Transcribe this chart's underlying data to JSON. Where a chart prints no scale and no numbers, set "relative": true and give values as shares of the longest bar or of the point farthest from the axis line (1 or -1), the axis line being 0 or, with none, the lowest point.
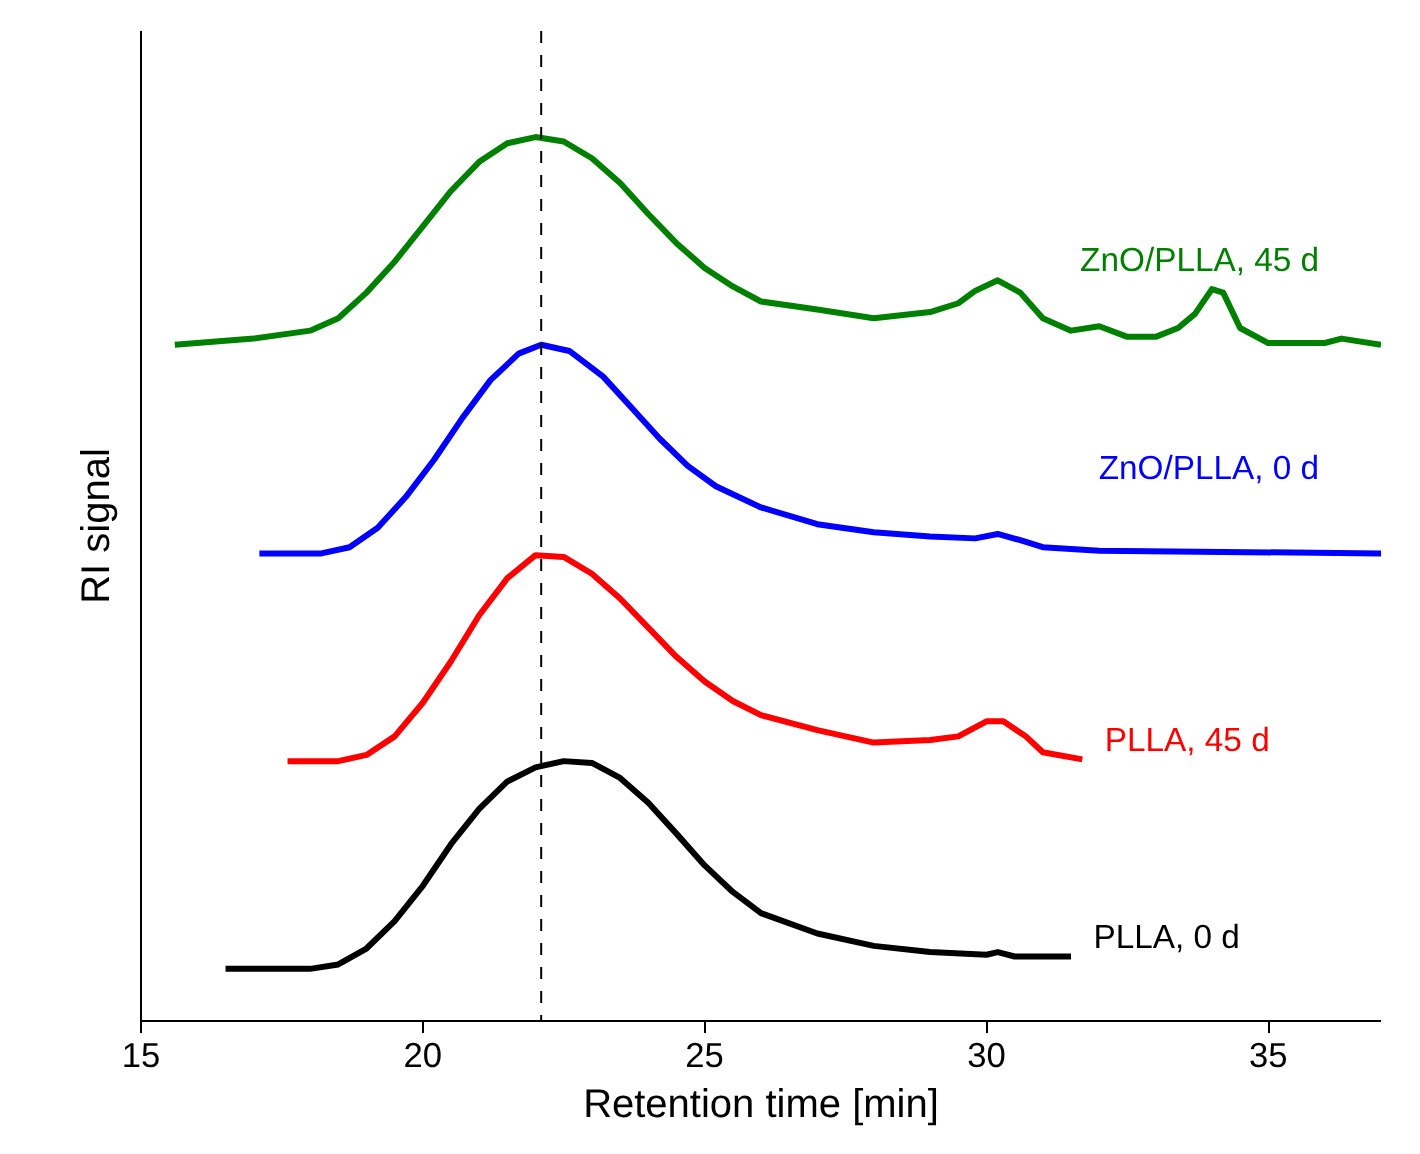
{
  "chart_data": {
    "type": "line",
    "relative": true,
    "xlabel": "Retention time [min]",
    "ylabel": "RI signal",
    "xlim": [
      15,
      37
    ],
    "xticks": [
      15,
      20,
      25,
      30,
      35
    ],
    "grid": false,
    "marker": "none",
    "line_style": "solid",
    "ref_lines": [
      {
        "axis": "x",
        "value": 22.1,
        "color": "#000000",
        "line_style": "dashed"
      }
    ],
    "series": [
      {
        "name": "PLLA, 0 d",
        "color": "#000000",
        "x": [
          16.5,
          18,
          18.5,
          19,
          19.5,
          20,
          20.5,
          21,
          21.5,
          22,
          22.5,
          23,
          23.5,
          24,
          24.5,
          25,
          25.5,
          26,
          27,
          28,
          29,
          30,
          30.2,
          30.5,
          31.5
        ],
        "values": [
          0.059,
          0.059,
          0.064,
          0.082,
          0.113,
          0.153,
          0.2,
          0.24,
          0.271,
          0.287,
          0.294,
          0.292,
          0.275,
          0.247,
          0.212,
          0.176,
          0.146,
          0.122,
          0.099,
          0.085,
          0.078,
          0.075,
          0.078,
          0.073,
          0.073
        ]
      },
      {
        "name": "PLLA, 45 d",
        "color": "#ff0000",
        "x": [
          17.6,
          18.5,
          19,
          19.5,
          20,
          20.5,
          21,
          21.5,
          22,
          22.5,
          23,
          23.5,
          24,
          24.5,
          25,
          25.5,
          26,
          27,
          28,
          29,
          29.5,
          30,
          30.3,
          30.7,
          31,
          31.7
        ],
        "values": [
          0.294,
          0.294,
          0.301,
          0.322,
          0.36,
          0.407,
          0.459,
          0.501,
          0.527,
          0.525,
          0.506,
          0.478,
          0.445,
          0.412,
          0.384,
          0.362,
          0.346,
          0.329,
          0.315,
          0.318,
          0.322,
          0.339,
          0.339,
          0.322,
          0.304,
          0.296
        ]
      },
      {
        "name": "ZnO/PLLA, 0 d",
        "color": "#0000ff",
        "x": [
          17.1,
          18.2,
          18.7,
          19.2,
          19.7,
          20.2,
          20.7,
          21.2,
          21.7,
          22.1,
          22.6,
          23.2,
          23.7,
          24.2,
          24.7,
          25.2,
          26,
          27,
          28,
          29,
          29.8,
          30.2,
          30.6,
          31,
          32,
          37
        ],
        "values": [
          0.529,
          0.529,
          0.536,
          0.558,
          0.593,
          0.635,
          0.682,
          0.725,
          0.755,
          0.765,
          0.758,
          0.729,
          0.694,
          0.659,
          0.628,
          0.605,
          0.581,
          0.562,
          0.553,
          0.548,
          0.546,
          0.551,
          0.544,
          0.536,
          0.532,
          0.529
        ]
      },
      {
        "name": "ZnO/PLLA, 45 d",
        "color": "#008000",
        "x": [
          15.6,
          17,
          18,
          18.5,
          19,
          19.5,
          20,
          20.5,
          21,
          21.5,
          22,
          22.5,
          23,
          23.5,
          24,
          24.5,
          25,
          25.5,
          26,
          27,
          28,
          29,
          29.5,
          29.8,
          30.2,
          30.6,
          31,
          31.5,
          32,
          32.5,
          33,
          33.4,
          33.7,
          34,
          34.2,
          34.5,
          35,
          36,
          36.3,
          37
        ],
        "values": [
          0.765,
          0.772,
          0.781,
          0.795,
          0.824,
          0.859,
          0.899,
          0.939,
          0.972,
          0.993,
          1.0,
          0.995,
          0.976,
          0.948,
          0.913,
          0.88,
          0.852,
          0.831,
          0.814,
          0.805,
          0.795,
          0.802,
          0.812,
          0.826,
          0.838,
          0.824,
          0.795,
          0.781,
          0.786,
          0.774,
          0.774,
          0.784,
          0.8,
          0.828,
          0.824,
          0.784,
          0.767,
          0.767,
          0.772,
          0.765
        ]
      }
    ]
  }
}
